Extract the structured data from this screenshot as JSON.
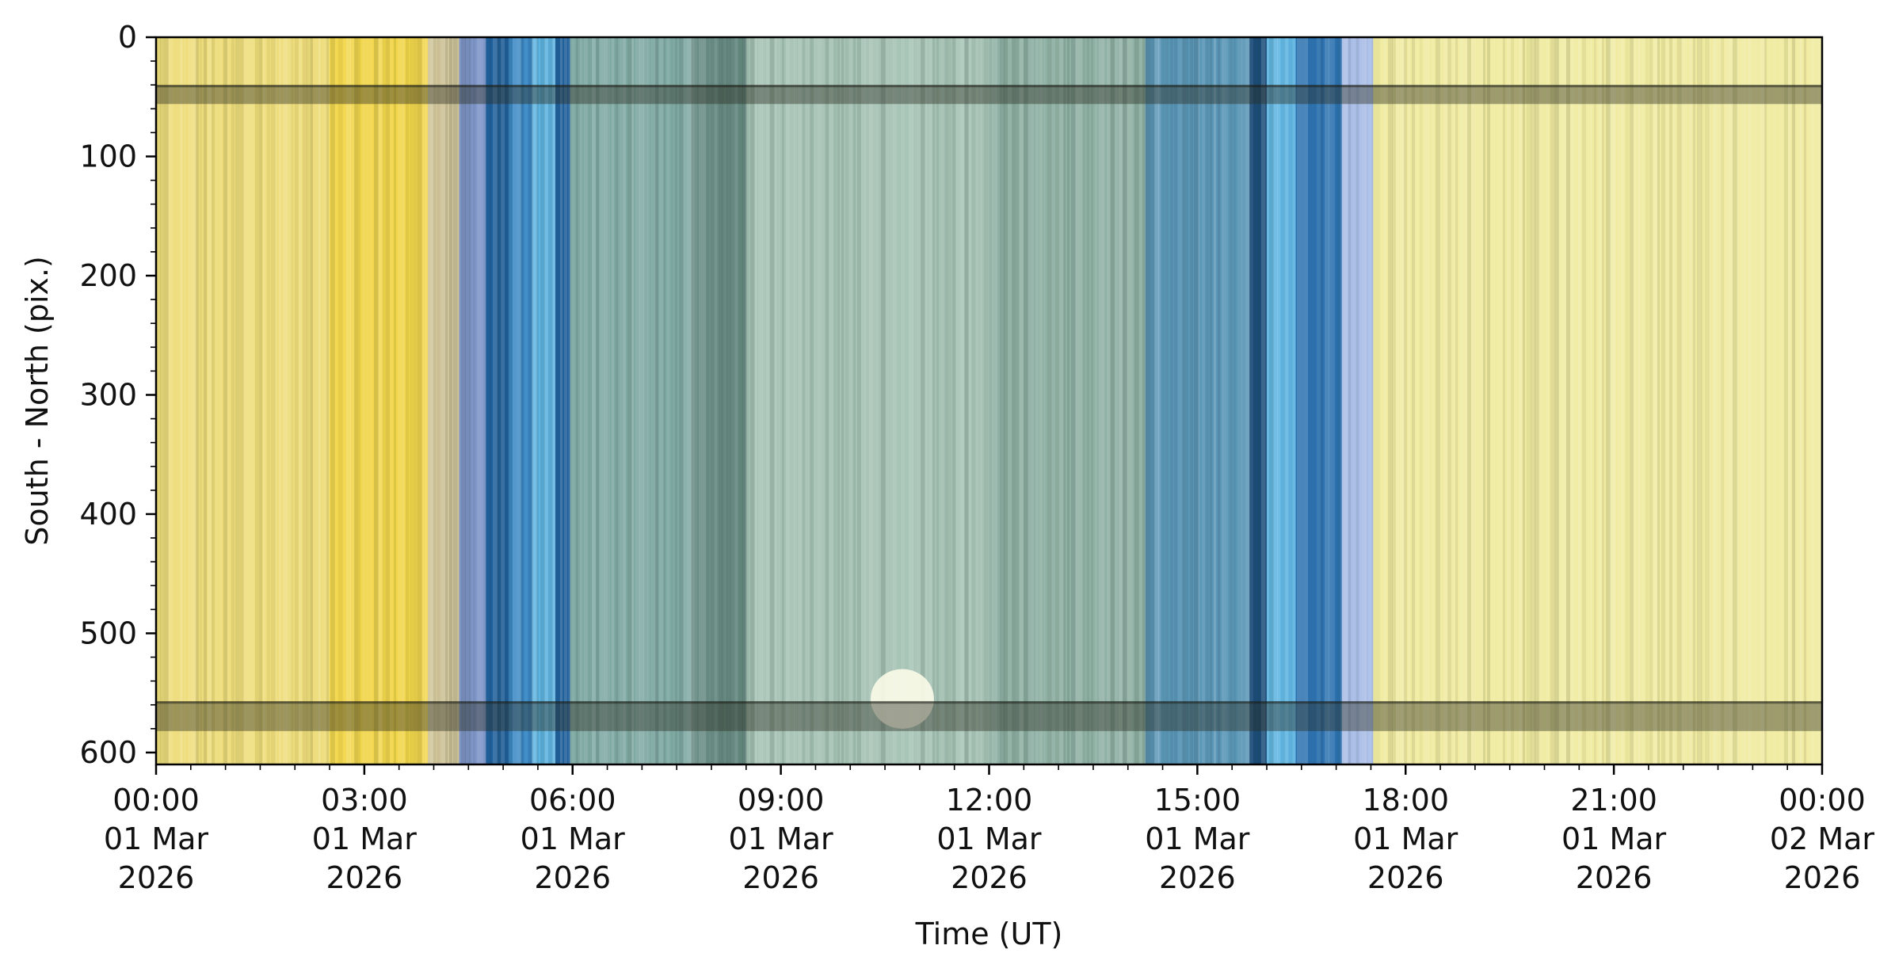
{
  "chart_data": {
    "type": "heatmap",
    "title": "",
    "xlabel": "Time (UT)",
    "ylabel": "South - North (pix.)",
    "xlim": [
      "2026-03-01T00:00",
      "2026-03-02T00:00"
    ],
    "ylim": [
      0,
      610
    ],
    "y_inverted": true,
    "grid": false,
    "x_ticks": [
      {
        "value": "2026-03-01T00:00",
        "label": [
          "00:00",
          "01 Mar",
          "2026"
        ]
      },
      {
        "value": "2026-03-01T03:00",
        "label": [
          "03:00",
          "01 Mar",
          "2026"
        ]
      },
      {
        "value": "2026-03-01T06:00",
        "label": [
          "06:00",
          "01 Mar",
          "2026"
        ]
      },
      {
        "value": "2026-03-01T09:00",
        "label": [
          "09:00",
          "01 Mar",
          "2026"
        ]
      },
      {
        "value": "2026-03-01T12:00",
        "label": [
          "12:00",
          "01 Mar",
          "2026"
        ]
      },
      {
        "value": "2026-03-01T15:00",
        "label": [
          "15:00",
          "01 Mar",
          "2026"
        ]
      },
      {
        "value": "2026-03-01T18:00",
        "label": [
          "18:00",
          "01 Mar",
          "2026"
        ]
      },
      {
        "value": "2026-03-01T21:00",
        "label": [
          "21:00",
          "01 Mar",
          "2026"
        ]
      },
      {
        "value": "2026-03-02T00:00",
        "label": [
          "00:00",
          "02 Mar",
          "2026"
        ]
      }
    ],
    "y_ticks": [
      0,
      100,
      200,
      300,
      400,
      500,
      600
    ],
    "color_bands": [
      {
        "start": "00:00",
        "end": "02:30",
        "color": "#eedd7a"
      },
      {
        "start": "02:30",
        "end": "03:55",
        "color": "#f2d64a"
      },
      {
        "start": "03:55",
        "end": "04:22",
        "color": "#cfc49a"
      },
      {
        "start": "04:22",
        "end": "04:45",
        "color": "#7f96c9"
      },
      {
        "start": "04:45",
        "end": "05:05",
        "color": "#1f5f9a"
      },
      {
        "start": "05:05",
        "end": "05:25",
        "color": "#3a88c6"
      },
      {
        "start": "05:25",
        "end": "05:45",
        "color": "#5eb4e2"
      },
      {
        "start": "05:45",
        "end": "05:58",
        "color": "#1f5f9a"
      },
      {
        "start": "05:58",
        "end": "07:42",
        "color": "#7fa9a3"
      },
      {
        "start": "07:42",
        "end": "08:30",
        "color": "#6a8e86"
      },
      {
        "start": "08:30",
        "end": "12:00",
        "color": "#a5c2b4"
      },
      {
        "start": "12:00",
        "end": "14:15",
        "color": "#8fb0a4"
      },
      {
        "start": "14:15",
        "end": "15:45",
        "color": "#5a96b6"
      },
      {
        "start": "15:45",
        "end": "16:00",
        "color": "#1b4d7a"
      },
      {
        "start": "16:00",
        "end": "16:25",
        "color": "#62b6e2"
      },
      {
        "start": "16:25",
        "end": "17:05",
        "color": "#2d72b0"
      },
      {
        "start": "17:05",
        "end": "17:32",
        "color": "#a9bde6"
      },
      {
        "start": "17:32",
        "end": "24:00",
        "color": "#f0eba0"
      }
    ],
    "dark_rows": [
      {
        "from": 40,
        "to": 56
      },
      {
        "from": 557,
        "to": 582
      }
    ],
    "bright_patch": {
      "time": "10:45",
      "y_from": 530,
      "y_to": 580,
      "color": "#fbfbe8"
    }
  }
}
